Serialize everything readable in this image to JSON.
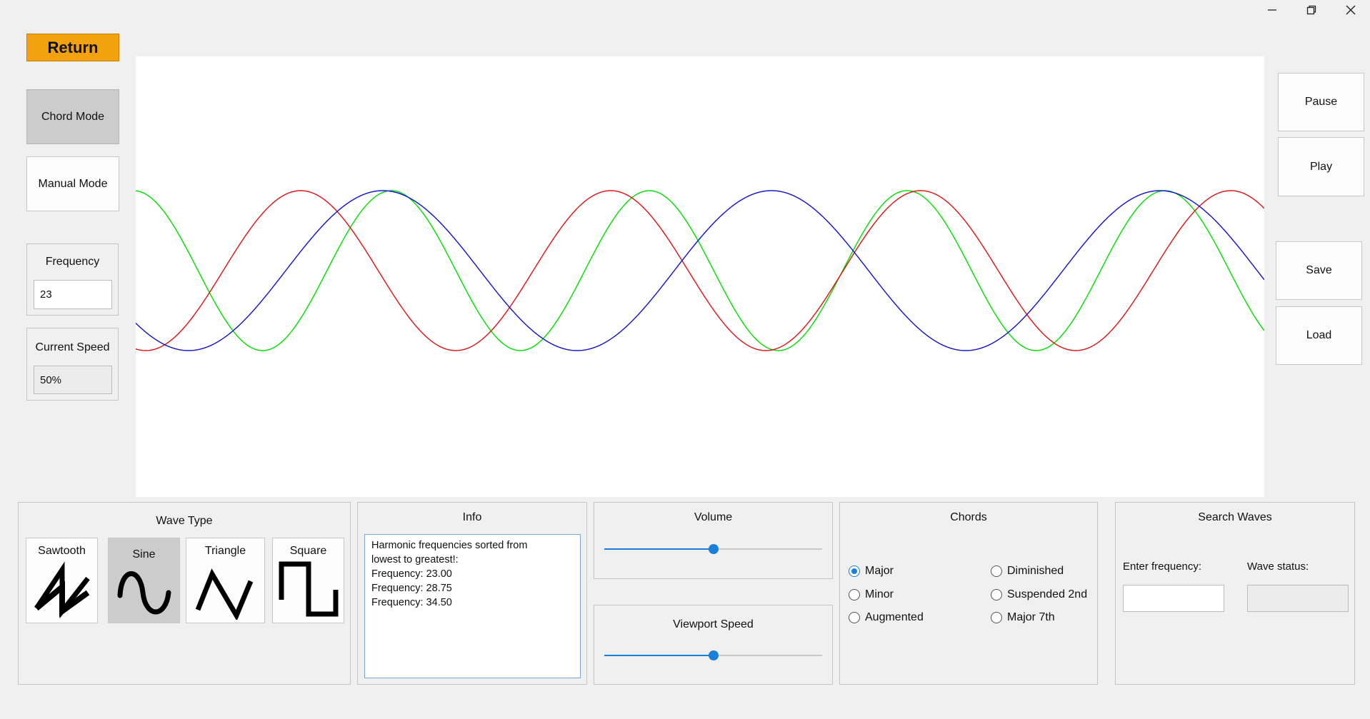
{
  "window": {
    "controls": [
      {
        "name": "minimize-icon",
        "glyph": "—"
      },
      {
        "name": "restore-icon",
        "glyph": "❐"
      },
      {
        "name": "close-icon",
        "glyph": "✕"
      }
    ]
  },
  "left_panel": {
    "return_label": "Return",
    "chord_mode_label": "Chord Mode",
    "manual_mode_label": "Manual Mode",
    "frequency_label": "Frequency",
    "frequency_value": "23",
    "speed_label": "Current Speed",
    "speed_value": "50%"
  },
  "right_panel": {
    "pause_label": "Pause",
    "play_label": "Play",
    "save_label": "Save",
    "load_label": "Load"
  },
  "chart_data": {
    "type": "line",
    "series": [
      {
        "color": "#00dd00",
        "wavelength_px": 361,
        "phase_px": -3
      },
      {
        "color": "#dd1111",
        "wavelength_px": 434,
        "phase_px": 231
      },
      {
        "color": "#1111cc",
        "wavelength_px": 544,
        "phase_px": 346
      }
    ],
    "colors": {
      "green": "#22dd22",
      "red": "#dd2222",
      "blue": "#1a1ac0"
    }
  },
  "wave_type": {
    "title": "Wave Type",
    "options": [
      {
        "label": "Sawtooth",
        "icon": "sawtooth-wave-icon"
      },
      {
        "label": "Sine",
        "icon": "sine-wave-icon"
      },
      {
        "label": "Triangle",
        "icon": "triangle-wave-icon"
      },
      {
        "label": "Square",
        "icon": "square-wave-icon"
      }
    ],
    "selected": "Sine"
  },
  "info": {
    "title": "Info",
    "lines": [
      "Harmonic frequencies sorted from",
      "lowest to greatest!:",
      "Frequency: 23.00",
      "Frequency: 28.75",
      "Frequency: 34.50"
    ]
  },
  "volume": {
    "title": "Volume",
    "value_fraction": 0.5
  },
  "viewport_speed": {
    "title": "Viewport Speed",
    "value_fraction": 0.5
  },
  "chords": {
    "title": "Chords",
    "options": [
      "Major",
      "Minor",
      "Augmented",
      "Diminished",
      "Suspended 2nd",
      "Major 7th"
    ],
    "selected": "Major"
  },
  "search_waves": {
    "title": "Search Waves",
    "enter_label": "Enter frequency:",
    "enter_value": "",
    "status_label": "Wave status:",
    "status_value": ""
  },
  "accent_color": "#1a7fd8",
  "return_color": "#f2a20e"
}
